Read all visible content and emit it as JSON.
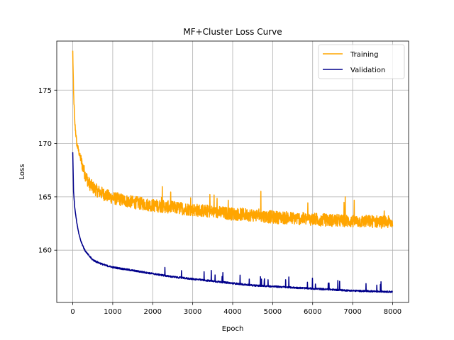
{
  "chart_data": {
    "type": "line",
    "title": "MF+Cluster Loss Curve",
    "xlabel": "Epoch",
    "ylabel": "Loss",
    "xlim": [
      -400,
      8400
    ],
    "ylim": [
      155.1,
      179.6
    ],
    "xticks": [
      0,
      1000,
      2000,
      3000,
      4000,
      5000,
      6000,
      7000,
      8000
    ],
    "yticks": [
      160,
      165,
      170,
      175
    ],
    "grid": true,
    "legend_position": "top-right",
    "series": [
      {
        "name": "Training",
        "color": "#ffa500",
        "noise_band": 1.2,
        "x": [
          0,
          20,
          50,
          100,
          200,
          300,
          400,
          500,
          600,
          800,
          1000,
          1500,
          2000,
          2500,
          3000,
          3500,
          4000,
          4500,
          5000,
          5500,
          6000,
          6500,
          7000,
          7500,
          8000
        ],
        "y": [
          178.6,
          174.8,
          172.0,
          170.0,
          168.5,
          167.2,
          166.3,
          165.9,
          165.6,
          165.2,
          164.9,
          164.5,
          164.2,
          164.0,
          163.8,
          163.6,
          163.4,
          163.3,
          163.1,
          163.0,
          162.9,
          162.8,
          162.7,
          162.7,
          162.6
        ]
      },
      {
        "name": "Validation",
        "color": "#00008b",
        "noise_band": 0.15,
        "x": [
          0,
          20,
          50,
          100,
          150,
          200,
          300,
          400,
          500,
          600,
          800,
          1000,
          1500,
          2000,
          2500,
          3000,
          3500,
          4000,
          4500,
          5000,
          5500,
          6000,
          6500,
          7000,
          7500,
          8000
        ],
        "y": [
          169.2,
          165.5,
          164.0,
          162.6,
          161.6,
          160.9,
          160.0,
          159.5,
          159.1,
          158.9,
          158.6,
          158.4,
          158.1,
          157.8,
          157.5,
          157.3,
          157.1,
          156.9,
          156.7,
          156.6,
          156.5,
          156.4,
          156.3,
          156.2,
          156.15,
          156.1
        ]
      }
    ]
  }
}
